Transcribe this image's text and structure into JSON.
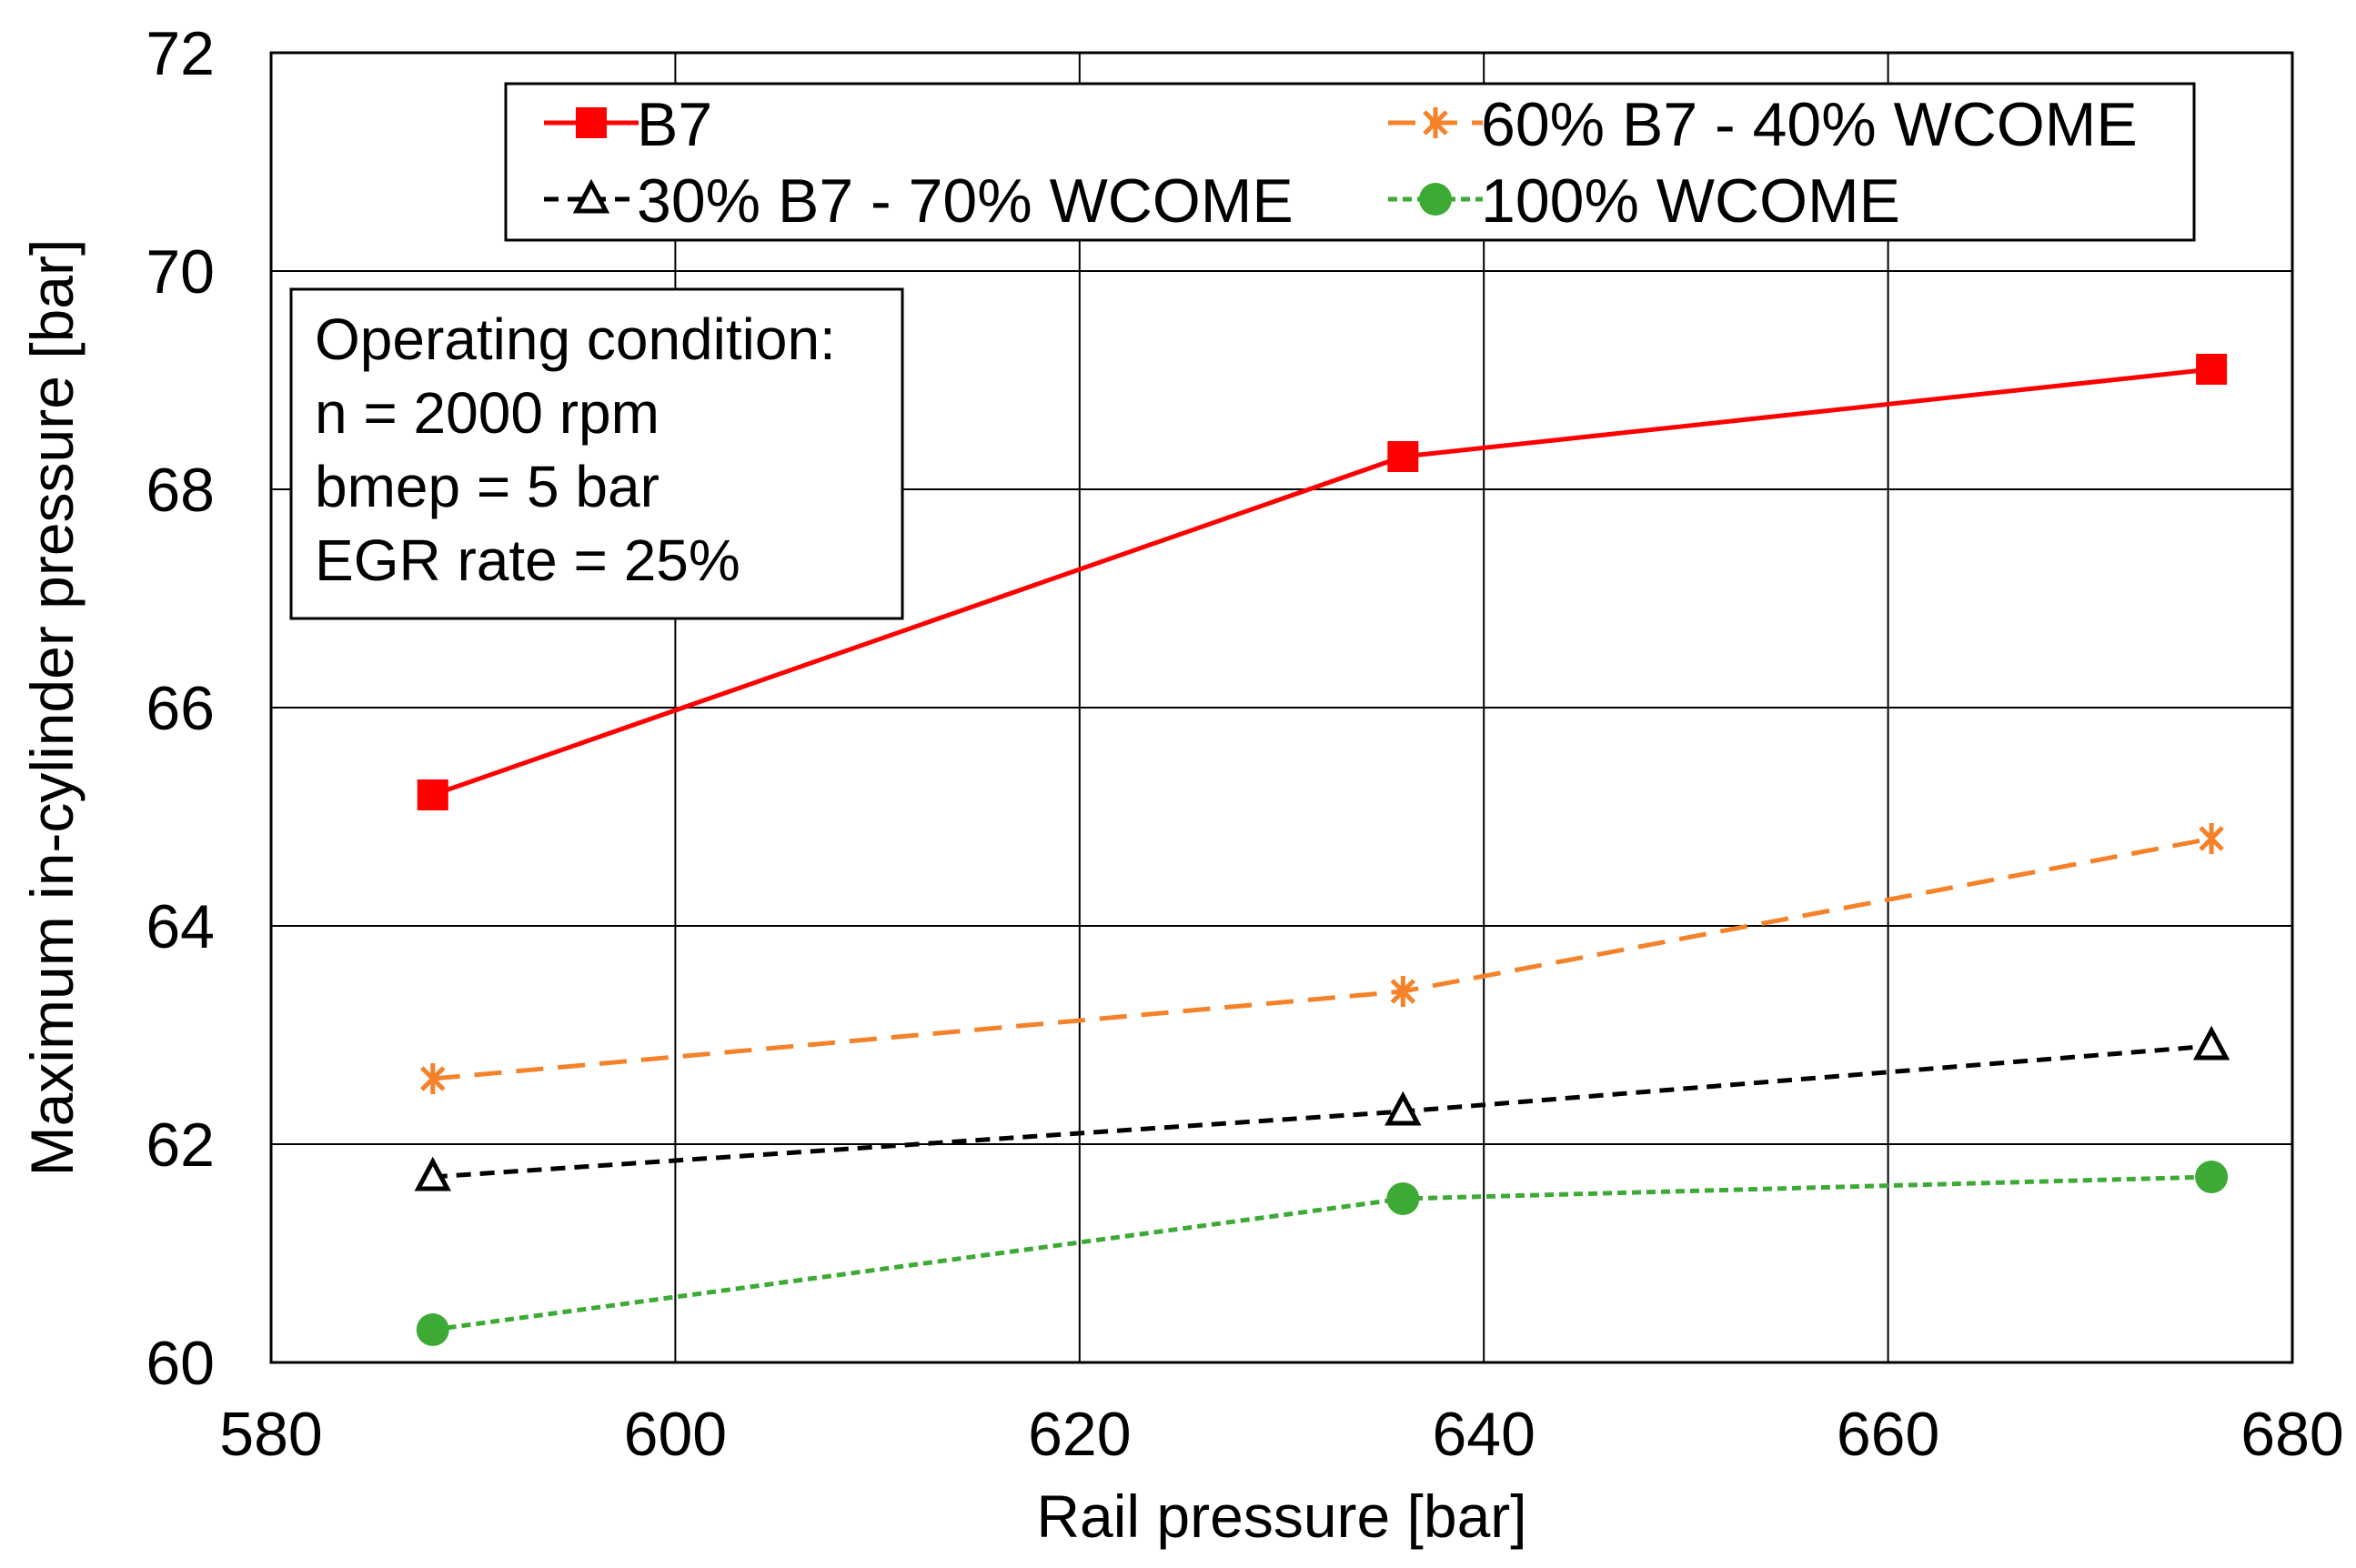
{
  "chart_data": {
    "type": "line",
    "title": "",
    "xlabel": "Rail pressure [bar]",
    "ylabel": "Maximum in-cylinder pressure [bar]",
    "xlim": [
      580,
      680
    ],
    "ylim": [
      60,
      72
    ],
    "xticks": [
      580,
      600,
      620,
      640,
      660,
      680
    ],
    "yticks": [
      60,
      62,
      64,
      66,
      68,
      70,
      72
    ],
    "grid": true,
    "legend_position": "top",
    "x": [
      588,
      636,
      676
    ],
    "series": [
      {
        "name": "B7",
        "values": [
          65.2,
          68.3,
          69.1
        ],
        "color": "#ff0000",
        "marker": "square",
        "line": "solid"
      },
      {
        "name": "60% B7 - 40% WCOME",
        "values": [
          62.6,
          63.4,
          64.8
        ],
        "color": "#f4822a",
        "marker": "star",
        "line": "long-dash"
      },
      {
        "name": "30% B7 - 70% WCOME",
        "values": [
          61.7,
          62.3,
          62.9
        ],
        "color": "#000000",
        "marker": "triangle",
        "line": "dash"
      },
      {
        "name": "100% WCOME",
        "values": [
          60.3,
          61.5,
          61.7
        ],
        "color": "#3daa35",
        "marker": "circle",
        "line": "dot-dash"
      }
    ],
    "annotation": {
      "lines": [
        "Operating condition:",
        "n = 2000 rpm",
        "bmep = 5 bar",
        "EGR rate = 25%"
      ]
    }
  }
}
